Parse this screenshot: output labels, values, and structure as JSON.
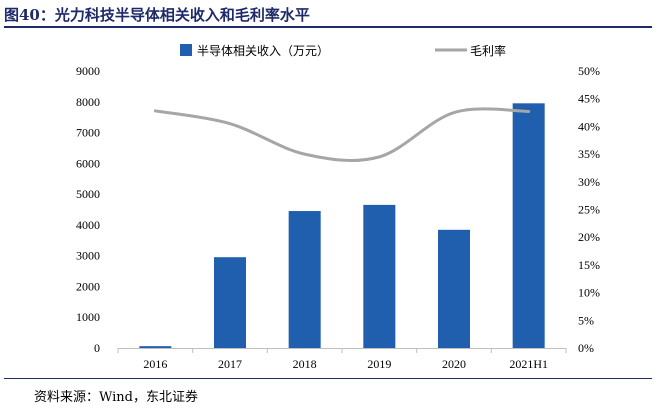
{
  "figure": {
    "title": "图40：光力科技半导体相关收入和毛利率水平",
    "source": "资料来源：Wind，东北证券"
  },
  "colors": {
    "bar": "#1f5fae",
    "line": "#a6a6a6",
    "title": "#1f2a6b"
  },
  "chart_data": {
    "type": "bar",
    "title": "光力科技半导体相关收入和毛利率水平",
    "categories": [
      "2016",
      "2017",
      "2018",
      "2019",
      "2020",
      "2021H1"
    ],
    "series": [
      {
        "name": "半导体相关收入（万元）",
        "type": "bar",
        "axis": "left",
        "values": [
          60,
          2950,
          4450,
          4650,
          3840,
          7950
        ]
      },
      {
        "name": "毛利率",
        "type": "line",
        "axis": "right",
        "smooth": true,
        "values": [
          0.428,
          0.405,
          0.35,
          0.345,
          0.425,
          0.427
        ]
      }
    ],
    "y_left": {
      "min": 0,
      "max": 9000,
      "step": 1000,
      "tick_labels": [
        "0",
        "1000",
        "2000",
        "3000",
        "4000",
        "5000",
        "6000",
        "7000",
        "8000",
        "9000"
      ]
    },
    "y_right": {
      "min": 0,
      "max": 0.5,
      "step": 0.05,
      "tick_labels": [
        "0%",
        "5%",
        "10%",
        "15%",
        "20%",
        "25%",
        "30%",
        "35%",
        "40%",
        "45%",
        "50%"
      ]
    },
    "legend_position": "top",
    "grid": false
  }
}
